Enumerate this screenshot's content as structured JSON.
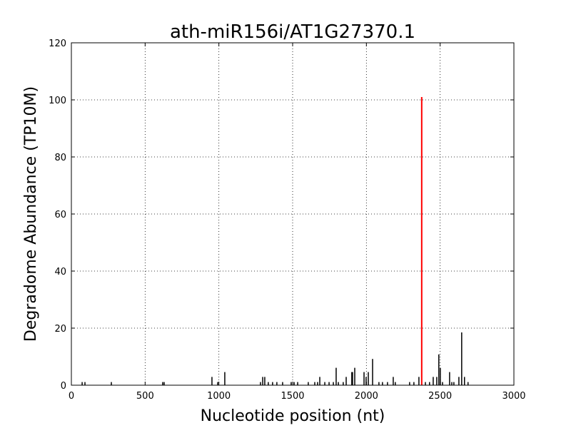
{
  "chart_data": {
    "type": "stem",
    "title": "ath-miR156i/AT1G27370.1",
    "xlabel": "Nucleotide position (nt)",
    "ylabel": "Degradome Abundance (TP10M)",
    "xlim": [
      0,
      3000
    ],
    "xticks": [
      0,
      500,
      1000,
      1500,
      2000,
      2500,
      3000
    ],
    "ylim": [
      0,
      120
    ],
    "yticks": [
      0,
      20,
      40,
      60,
      80,
      100,
      120
    ],
    "grid": true,
    "series": [
      {
        "color": "#000000",
        "x": [
          73,
          92,
          271,
          619,
          629,
          953,
          992,
          1040,
          1282,
          1297,
          1311,
          1335,
          1364,
          1393,
          1432,
          1490,
          1510,
          1534,
          1606,
          1650,
          1669,
          1684,
          1718,
          1747,
          1776,
          1795,
          1810,
          1843,
          1863,
          1901,
          1906,
          1921,
          1984,
          1998,
          2013,
          2042,
          2085,
          2109,
          2143,
          2182,
          2196,
          2293,
          2322,
          2356,
          2400,
          2428,
          2453,
          2477,
          2491,
          2501,
          2516,
          2564,
          2579,
          2593,
          2627,
          2646,
          2665,
          2689
        ],
        "values": [
          1.1,
          1.1,
          1.1,
          1.1,
          1.1,
          2.9,
          1.1,
          4.6,
          1.1,
          2.9,
          2.9,
          1.1,
          1.1,
          1.1,
          1.1,
          1.1,
          1.1,
          1.1,
          1.1,
          1.1,
          1.1,
          2.9,
          1.1,
          1.1,
          1.1,
          6.1,
          1.1,
          1.1,
          2.9,
          4.6,
          4.6,
          6.1,
          4.6,
          2.9,
          4.6,
          9.2,
          1.1,
          1.1,
          1.1,
          2.9,
          1.1,
          1.1,
          1.1,
          2.9,
          1.1,
          1.1,
          2.9,
          2.9,
          10.8,
          6.1,
          1.1,
          4.6,
          1.1,
          1.1,
          2.9,
          18.5,
          2.9,
          1.1
        ]
      },
      {
        "color": "#ff0000",
        "x": [
          2375
        ],
        "values": [
          101
        ]
      }
    ]
  }
}
